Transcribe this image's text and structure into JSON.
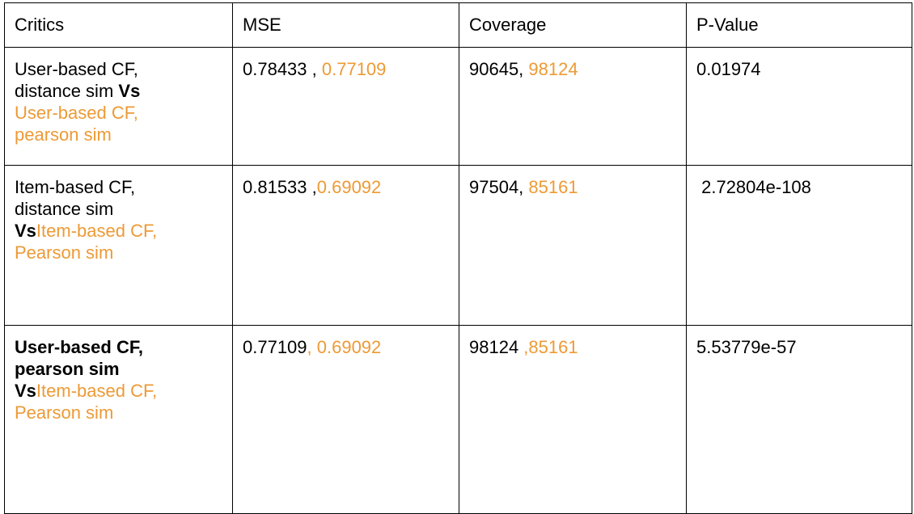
{
  "accent_color": "#ED9A36",
  "table": {
    "headers": [
      "Critics",
      "MSE",
      "Coverage",
      "P-Value"
    ],
    "rows": [
      {
        "critics": {
          "line1": "User-based CF,",
          "line2": "distance sim ",
          "vs": "Vs",
          "line3": "User-based CF,",
          "line4": "pearson sim"
        },
        "mse": {
          "a": "0.78433 , ",
          "b": "0.77109"
        },
        "coverage": {
          "a": "90645, ",
          "b": "98124"
        },
        "pvalue": "0.01974"
      },
      {
        "critics": {
          "line1": "Item-based CF,",
          "line2": "distance sim",
          "vs": "Vs",
          "line3": "Item-based CF,",
          "line4": "Pearson sim"
        },
        "mse": {
          "a": "0.81533 ,",
          "b": "0.69092"
        },
        "coverage": {
          "a": "97504, ",
          "b": "85161"
        },
        "pvalue": " 2.72804e-108"
      },
      {
        "critics": {
          "line1": "User-based CF,",
          "line2": "pearson sim",
          "vs": "Vs",
          "line3": "Item-based CF,",
          "line4": "Pearson sim"
        },
        "mse": {
          "a": "0.77109",
          "b": ", 0.69092"
        },
        "coverage": {
          "a": "98124 ",
          "b": ",85161"
        },
        "pvalue": "5.53779e-57"
      }
    ]
  }
}
